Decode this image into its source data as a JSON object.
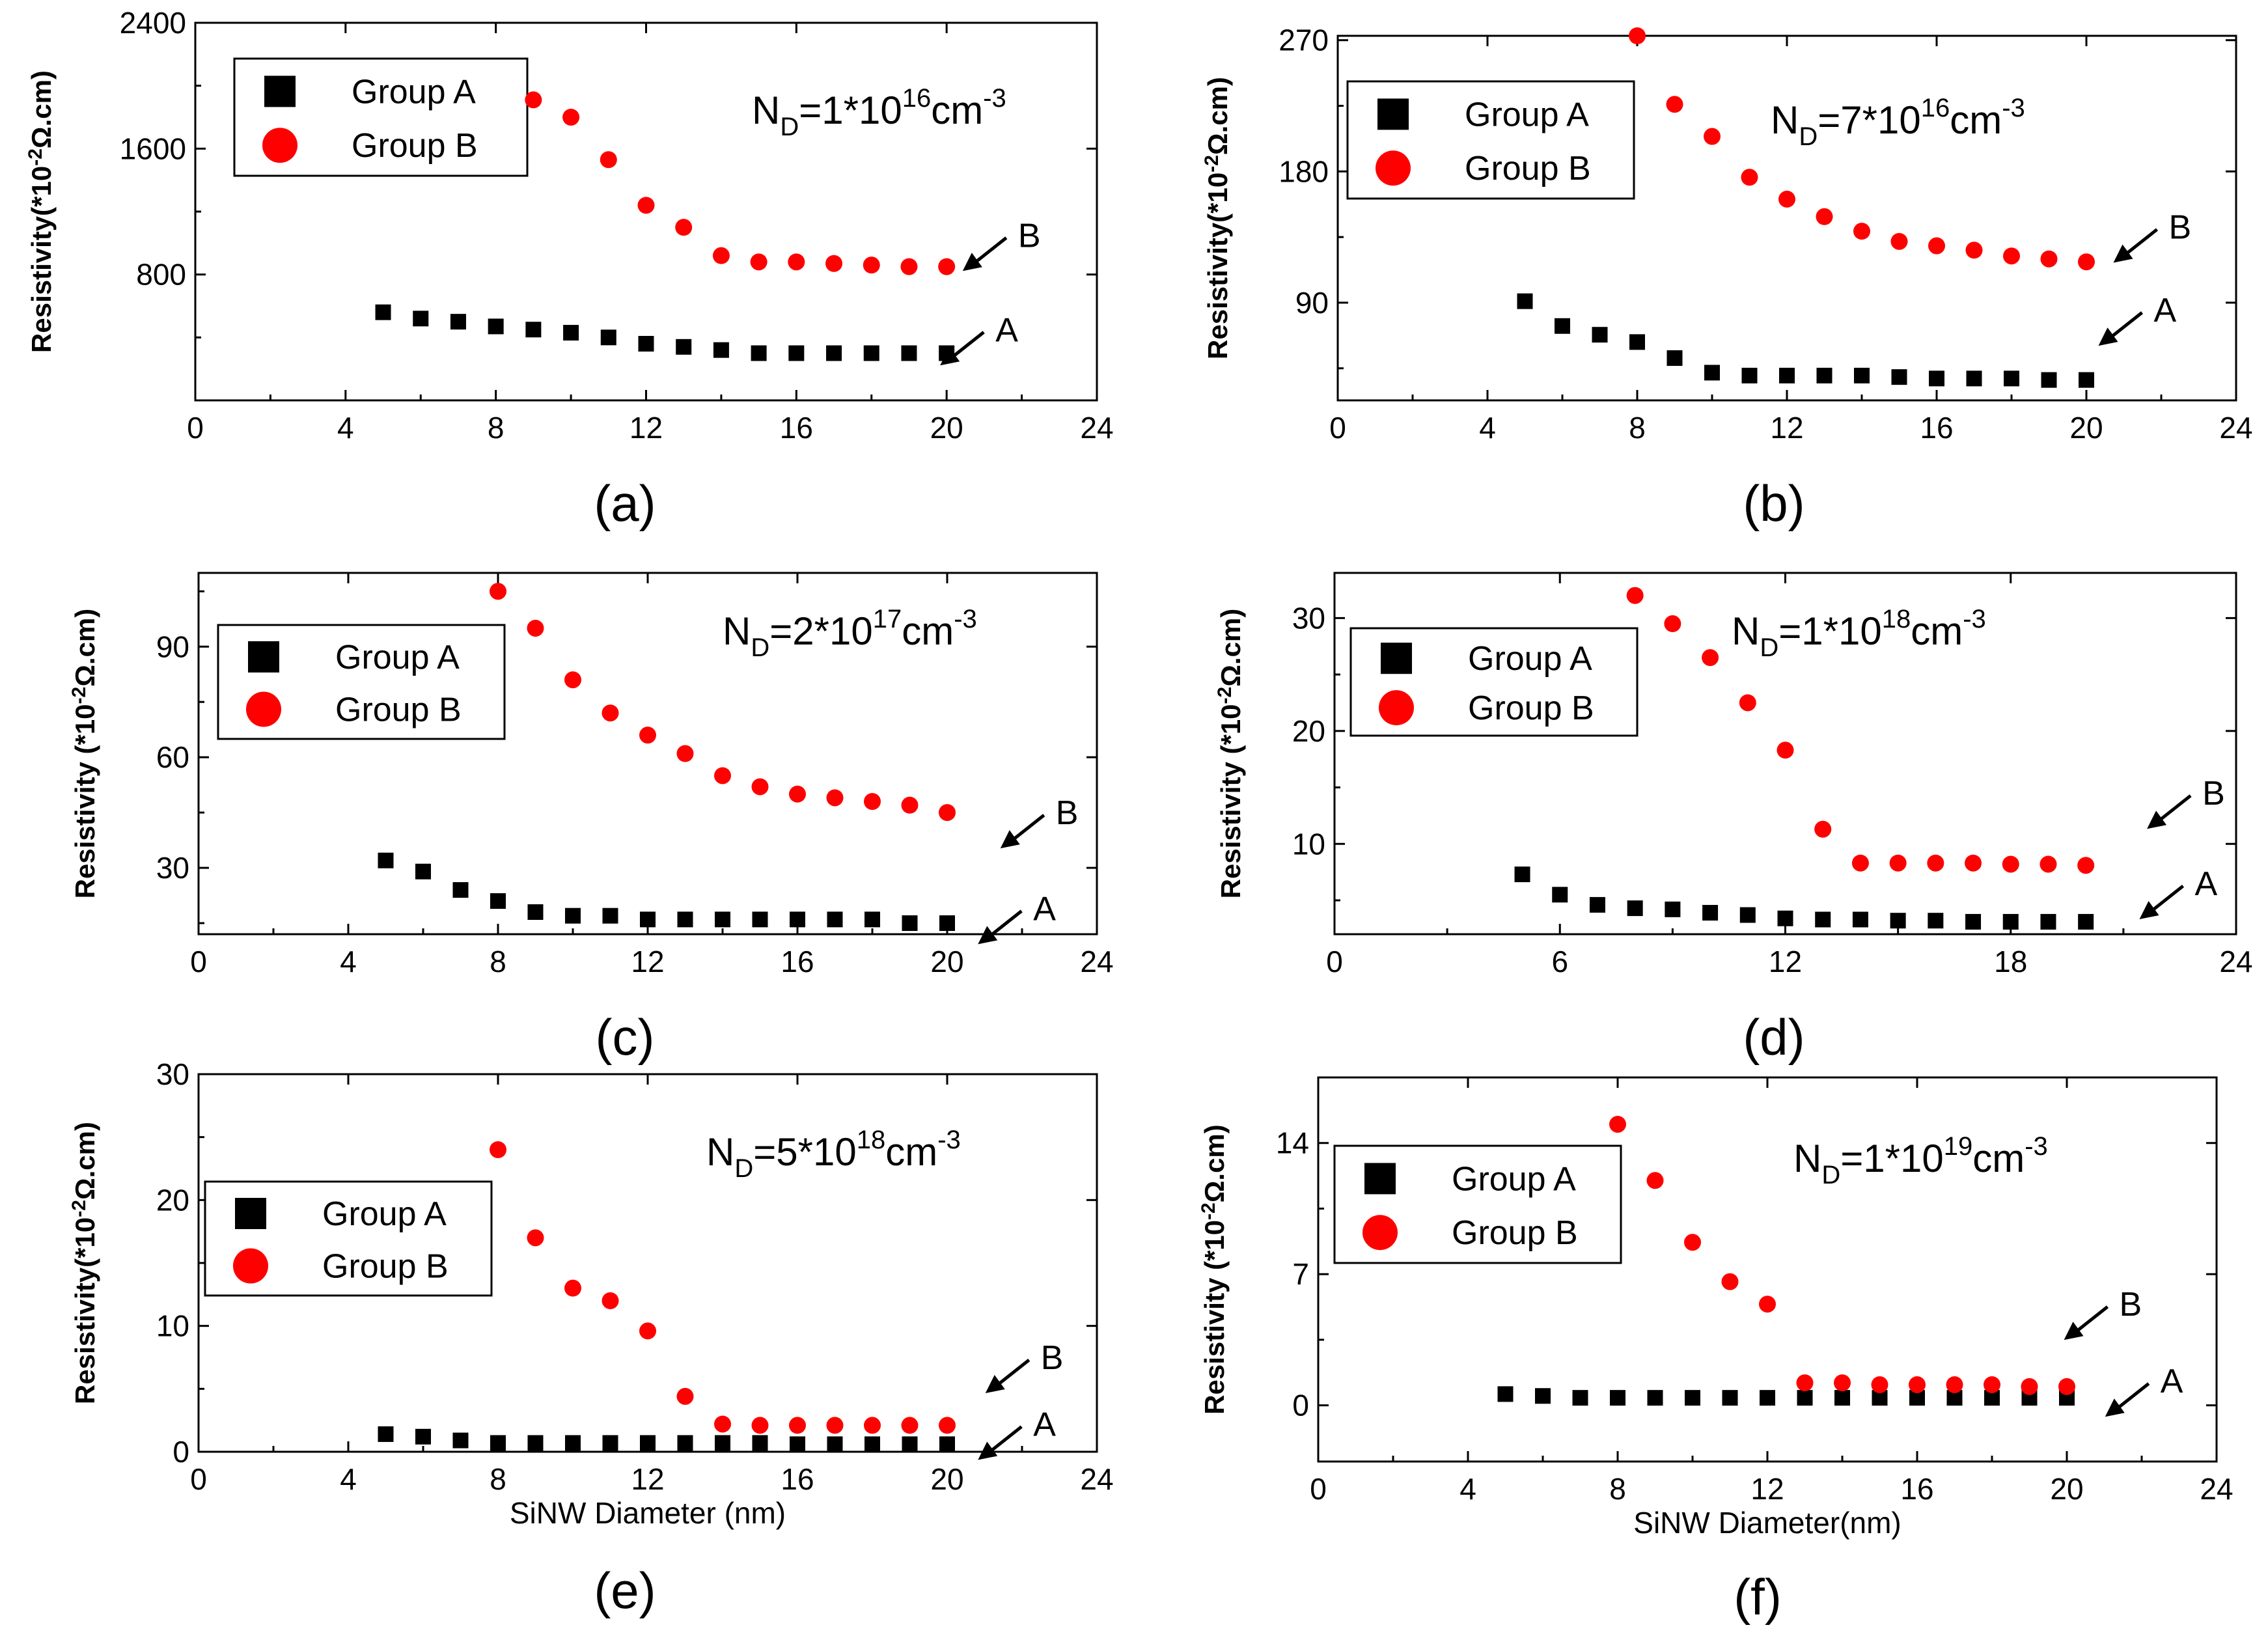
{
  "chart_data": [
    {
      "type": "scatter",
      "panel": "(a)",
      "annotation": {
        "base": "N",
        "sub": "D",
        "eq": "=1*10",
        "exp": "16",
        "unit": "cm",
        "unitexp": "-3"
      },
      "ylabel": "Resistivity(*10-2Ω.cm)",
      "ylabel_parts": {
        "pre": "Resistivity(*10",
        "sup": "-2",
        "post": "Ω.cm)"
      },
      "xlabel": "",
      "xlim": [
        0,
        24
      ],
      "ylim": [
        0,
        2400
      ],
      "xticks": [
        0,
        4,
        8,
        12,
        16,
        20,
        24
      ],
      "yticks": [
        800,
        1600,
        2400
      ],
      "series": [
        {
          "name": "Group A",
          "x": [
            5,
            6,
            7,
            8,
            9,
            10,
            11,
            12,
            13,
            14,
            15,
            16,
            17,
            18,
            19,
            20
          ],
          "values": [
            560,
            520,
            500,
            470,
            450,
            430,
            400,
            360,
            340,
            320,
            300,
            300,
            300,
            300,
            300,
            300
          ]
        },
        {
          "name": "Group B",
          "x": [
            9,
            10,
            11,
            12,
            13,
            14,
            15,
            16,
            17,
            18,
            19,
            20
          ],
          "values": [
            1910,
            1800,
            1530,
            1240,
            1100,
            920,
            880,
            880,
            870,
            860,
            850,
            850
          ]
        }
      ],
      "labels": [
        {
          "text": "B",
          "x": 21.9,
          "y": 1050
        },
        {
          "text": "A",
          "x": 21.3,
          "y": 450
        }
      ]
    },
    {
      "type": "scatter",
      "panel": "(b)",
      "annotation": {
        "base": "N",
        "sub": "D",
        "eq": "=7*10",
        "exp": "16",
        "unit": "cm",
        "unitexp": "-3"
      },
      "ylabel": "Resistivity(*10-2Ω.cm)",
      "ylabel_parts": {
        "pre": "Resistivity(*10",
        "sup": "-2",
        "post": "Ω.cm)"
      },
      "xlabel": "",
      "xlim": [
        0,
        24
      ],
      "ylim": [
        23,
        273
      ],
      "xticks": [
        0,
        4,
        8,
        12,
        16,
        20,
        24
      ],
      "yticks": [
        90,
        180,
        270
      ],
      "series": [
        {
          "name": "Group A",
          "x": [
            5,
            6,
            7,
            8,
            9,
            10,
            11,
            12,
            13,
            14,
            15,
            16,
            17,
            18,
            19,
            20
          ],
          "values": [
            91,
            74,
            68,
            63,
            52,
            42,
            40,
            40,
            40,
            40,
            39,
            38,
            38,
            38,
            37,
            37
          ]
        },
        {
          "name": "Group B",
          "x": [
            8,
            9,
            10,
            11,
            12,
            13,
            14,
            15,
            16,
            17,
            18,
            19,
            20
          ],
          "values": [
            273,
            226,
            204,
            176,
            161,
            149,
            139,
            132,
            129,
            126,
            122,
            120,
            118
          ]
        }
      ],
      "labels": [
        {
          "text": "B",
          "x": 22.2,
          "y": 142
        },
        {
          "text": "A",
          "x": 21.8,
          "y": 85
        }
      ]
    },
    {
      "type": "scatter",
      "panel": "(c)",
      "annotation": {
        "base": "N",
        "sub": "D",
        "eq": "=2*10",
        "exp": "17",
        "unit": "cm",
        "unitexp": "-3"
      },
      "ylabel": "Resistivity (*10-2Ω.cm)",
      "ylabel_parts": {
        "pre": "Resistivity (*10",
        "sup": "-2",
        "post": "Ω.cm)"
      },
      "xlabel": "",
      "xlim": [
        0,
        24
      ],
      "ylim": [
        12,
        110
      ],
      "xticks": [
        0,
        4,
        8,
        12,
        16,
        20,
        24
      ],
      "yticks": [
        30,
        60,
        90
      ],
      "series": [
        {
          "name": "Group A",
          "x": [
            5,
            6,
            7,
            8,
            9,
            10,
            11,
            12,
            13,
            14,
            15,
            16,
            17,
            18,
            19,
            20
          ],
          "values": [
            32,
            29,
            24,
            21,
            18,
            17,
            17,
            16,
            16,
            16,
            16,
            16,
            16,
            16,
            15,
            15
          ]
        },
        {
          "name": "Group B",
          "x": [
            8,
            9,
            10,
            11,
            12,
            13,
            14,
            15,
            16,
            17,
            18,
            19,
            20
          ],
          "values": [
            105,
            95,
            81,
            72,
            66,
            61,
            55,
            52,
            50,
            49,
            48,
            47,
            45
          ]
        }
      ],
      "labels": [
        {
          "text": "B",
          "x": 22.9,
          "y": 45
        },
        {
          "text": "A",
          "x": 22.3,
          "y": 19
        }
      ]
    },
    {
      "type": "scatter",
      "panel": "(d)",
      "annotation": {
        "base": "N",
        "sub": "D",
        "eq": "=1*10",
        "exp": "18",
        "unit": "cm",
        "unitexp": "-3"
      },
      "ylabel": "Resistivity (*10-2Ω.cm)",
      "ylabel_parts": {
        "pre": "Resistivity (*10",
        "sup": "-2",
        "post": "Ω.cm)"
      },
      "xlabel": "",
      "xlim": [
        0,
        24
      ],
      "ylim": [
        2,
        34
      ],
      "xticks": [
        0,
        6,
        12,
        18,
        24
      ],
      "yticks": [
        10,
        20,
        30
      ],
      "series": [
        {
          "name": "Group A",
          "x": [
            5,
            6,
            7,
            8,
            9,
            10,
            11,
            12,
            13,
            14,
            15,
            16,
            17,
            18,
            19,
            20
          ],
          "values": [
            7.3,
            5.5,
            4.6,
            4.3,
            4.2,
            3.9,
            3.7,
            3.4,
            3.3,
            3.3,
            3.2,
            3.2,
            3.1,
            3.1,
            3.1,
            3.1
          ]
        },
        {
          "name": "Group B",
          "x": [
            8,
            9,
            10,
            11,
            12,
            13,
            14,
            15,
            16,
            17,
            18,
            19,
            20
          ],
          "values": [
            32,
            29.5,
            26.5,
            22.5,
            18.3,
            11.3,
            8.3,
            8.3,
            8.3,
            8.3,
            8.2,
            8.2,
            8.1
          ]
        }
      ],
      "labels": [
        {
          "text": "B",
          "x": 23.1,
          "y": 14.5
        },
        {
          "text": "A",
          "x": 22.9,
          "y": 6.5
        }
      ]
    },
    {
      "type": "scatter",
      "panel": "(e)",
      "annotation": {
        "base": "N",
        "sub": "D",
        "eq": "=5*10",
        "exp": "18",
        "unit": "cm",
        "unitexp": "-3"
      },
      "ylabel": "Resistivity(*10-2Ω.cm)",
      "ylabel_parts": {
        "pre": "Resistivity(*10",
        "sup": "-2",
        "post": "Ω.cm)"
      },
      "xlabel": "SiNW Diameter (nm)",
      "xlim": [
        0,
        24
      ],
      "ylim": [
        0,
        30
      ],
      "xticks": [
        0,
        4,
        8,
        12,
        16,
        20,
        24
      ],
      "yticks": [
        0,
        10,
        20,
        30
      ],
      "series": [
        {
          "name": "Group A",
          "x": [
            5,
            6,
            7,
            8,
            9,
            10,
            11,
            12,
            13,
            14,
            15,
            16,
            17,
            18,
            19,
            20
          ],
          "values": [
            1.4,
            1.2,
            0.9,
            0.7,
            0.7,
            0.7,
            0.7,
            0.7,
            0.7,
            0.7,
            0.7,
            0.6,
            0.6,
            0.6,
            0.6,
            0.6
          ]
        },
        {
          "name": "Group B",
          "x": [
            8,
            9,
            10,
            11,
            12,
            13,
            14,
            15,
            16,
            17,
            18,
            19,
            20
          ],
          "values": [
            24,
            17,
            13,
            12,
            9.6,
            4.4,
            2.2,
            2.1,
            2.1,
            2.1,
            2.1,
            2.1,
            2.1
          ]
        }
      ],
      "labels": [
        {
          "text": "B",
          "x": 22.5,
          "y": 7.5
        },
        {
          "text": "A",
          "x": 22.3,
          "y": 2.2
        }
      ]
    },
    {
      "type": "scatter",
      "panel": "(f)",
      "annotation": {
        "base": "N",
        "sub": "D",
        "eq": "=1*10",
        "exp": "19",
        "unit": "cm",
        "unitexp": "-3"
      },
      "ylabel": "Resistivity (*10-2Ω.cm)",
      "ylabel_parts": {
        "pre": "Resistivity (*10",
        "sup": "-2",
        "post": "Ω.cm)"
      },
      "xlabel": "SiNW Diameter(nm)",
      "xlim": [
        0,
        24
      ],
      "ylim": [
        -3,
        17.5
      ],
      "xticks": [
        0,
        4,
        8,
        12,
        16,
        20,
        24
      ],
      "yticks": [
        0,
        7,
        14
      ],
      "series": [
        {
          "name": "Group A",
          "x": [
            5,
            6,
            7,
            8,
            9,
            10,
            11,
            12,
            13,
            14,
            15,
            16,
            17,
            18,
            19,
            20
          ],
          "values": [
            0.6,
            0.5,
            0.4,
            0.4,
            0.4,
            0.4,
            0.4,
            0.4,
            0.4,
            0.4,
            0.4,
            0.4,
            0.4,
            0.4,
            0.4,
            0.4
          ]
        },
        {
          "name": "Group B",
          "x": [
            8,
            9,
            10,
            11,
            12,
            13,
            14,
            15,
            16,
            17,
            18,
            19,
            20
          ],
          "values": [
            15,
            12,
            8.7,
            6.6,
            5.4,
            1.2,
            1.2,
            1.1,
            1.1,
            1.1,
            1.1,
            1.0,
            1.0
          ]
        }
      ],
      "labels": [
        {
          "text": "B",
          "x": 21.4,
          "y": 5.4
        },
        {
          "text": "A",
          "x": 22.5,
          "y": 1.3
        }
      ]
    }
  ],
  "colors": {
    "group_a": "#000000",
    "group_b": "#ff0000"
  }
}
